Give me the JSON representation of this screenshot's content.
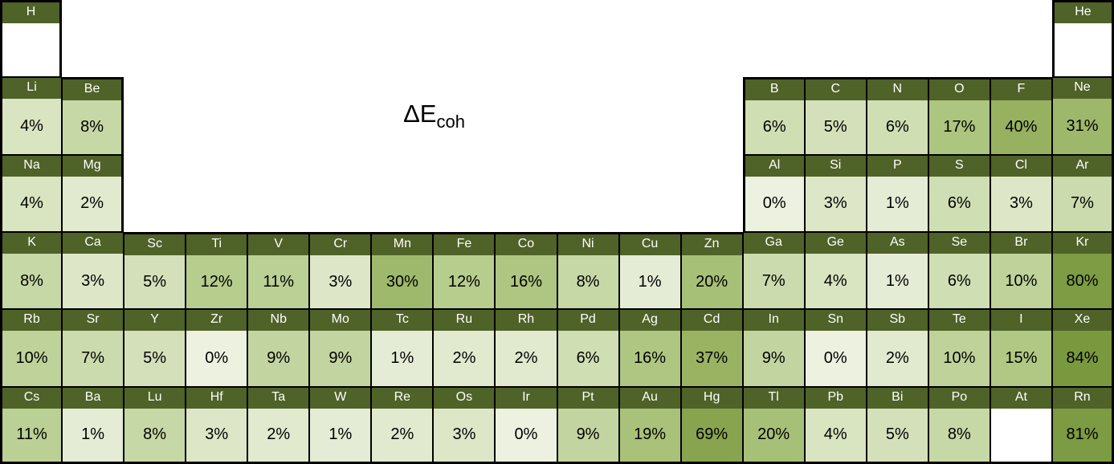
{
  "title": {
    "main": "ΔE",
    "sub": "coh"
  },
  "colors": {
    "header_bg": "#4F6228",
    "header_text": "#FFFFFF",
    "value_text": "#000000",
    "border": "#000000",
    "empty_body": "#FFFFFF",
    "background": "#FFFFFF",
    "value_colors": {
      "0": "#EDF1DF",
      "1": "#E5ECD5",
      "2": "#E1E9CE",
      "3": "#DDE7C8",
      "4": "#D9E4C1",
      "5": "#D4E0BA",
      "6": "#CFDEB3",
      "7": "#CBDBAD",
      "8": "#C6D8A6",
      "9": "#C2D5A0",
      "10": "#BED29A",
      "11": "#BAD094",
      "12": "#B7CD8E",
      "15": "#B0C884",
      "16": "#AEC681",
      "17": "#ACC57F",
      "19": "#A9C179",
      "20": "#A7C077",
      "30": "#9FB96C",
      "31": "#9EB86B",
      "37": "#99B363",
      "40": "#97B160",
      "69": "#88A44F",
      "80": "#7E9C43",
      "81": "#7D9B42",
      "84": "#7A983E"
    }
  },
  "chart_data": {
    "type": "heatmap",
    "layout": "periodic-table",
    "title": "ΔE_coh",
    "unit": "%",
    "columns": 18,
    "rows": 6,
    "value_range": [
      0,
      84
    ],
    "cells": [
      {
        "row": 1,
        "col": 1,
        "symbol": "H",
        "value": null
      },
      {
        "row": 1,
        "col": 18,
        "symbol": "He",
        "value": null
      },
      {
        "row": 2,
        "col": 1,
        "symbol": "Li",
        "value": 4
      },
      {
        "row": 2,
        "col": 2,
        "symbol": "Be",
        "value": 8
      },
      {
        "row": 2,
        "col": 13,
        "symbol": "B",
        "value": 6
      },
      {
        "row": 2,
        "col": 14,
        "symbol": "C",
        "value": 5
      },
      {
        "row": 2,
        "col": 15,
        "symbol": "N",
        "value": 6
      },
      {
        "row": 2,
        "col": 16,
        "symbol": "O",
        "value": 17
      },
      {
        "row": 2,
        "col": 17,
        "symbol": "F",
        "value": 40
      },
      {
        "row": 2,
        "col": 18,
        "symbol": "Ne",
        "value": 31
      },
      {
        "row": 3,
        "col": 1,
        "symbol": "Na",
        "value": 4
      },
      {
        "row": 3,
        "col": 2,
        "symbol": "Mg",
        "value": 2
      },
      {
        "row": 3,
        "col": 13,
        "symbol": "Al",
        "value": 0
      },
      {
        "row": 3,
        "col": 14,
        "symbol": "Si",
        "value": 3
      },
      {
        "row": 3,
        "col": 15,
        "symbol": "P",
        "value": 1
      },
      {
        "row": 3,
        "col": 16,
        "symbol": "S",
        "value": 6
      },
      {
        "row": 3,
        "col": 17,
        "symbol": "Cl",
        "value": 3
      },
      {
        "row": 3,
        "col": 18,
        "symbol": "Ar",
        "value": 7
      },
      {
        "row": 4,
        "col": 1,
        "symbol": "K",
        "value": 8
      },
      {
        "row": 4,
        "col": 2,
        "symbol": "Ca",
        "value": 3
      },
      {
        "row": 4,
        "col": 3,
        "symbol": "Sc",
        "value": 5
      },
      {
        "row": 4,
        "col": 4,
        "symbol": "Ti",
        "value": 12
      },
      {
        "row": 4,
        "col": 5,
        "symbol": "V",
        "value": 11
      },
      {
        "row": 4,
        "col": 6,
        "symbol": "Cr",
        "value": 3
      },
      {
        "row": 4,
        "col": 7,
        "symbol": "Mn",
        "value": 30
      },
      {
        "row": 4,
        "col": 8,
        "symbol": "Fe",
        "value": 12
      },
      {
        "row": 4,
        "col": 9,
        "symbol": "Co",
        "value": 16
      },
      {
        "row": 4,
        "col": 10,
        "symbol": "Ni",
        "value": 8
      },
      {
        "row": 4,
        "col": 11,
        "symbol": "Cu",
        "value": 1
      },
      {
        "row": 4,
        "col": 12,
        "symbol": "Zn",
        "value": 20
      },
      {
        "row": 4,
        "col": 13,
        "symbol": "Ga",
        "value": 7
      },
      {
        "row": 4,
        "col": 14,
        "symbol": "Ge",
        "value": 4
      },
      {
        "row": 4,
        "col": 15,
        "symbol": "As",
        "value": 1
      },
      {
        "row": 4,
        "col": 16,
        "symbol": "Se",
        "value": 6
      },
      {
        "row": 4,
        "col": 17,
        "symbol": "Br",
        "value": 10
      },
      {
        "row": 4,
        "col": 18,
        "symbol": "Kr",
        "value": 80
      },
      {
        "row": 5,
        "col": 1,
        "symbol": "Rb",
        "value": 10
      },
      {
        "row": 5,
        "col": 2,
        "symbol": "Sr",
        "value": 7
      },
      {
        "row": 5,
        "col": 3,
        "symbol": "Y",
        "value": 5
      },
      {
        "row": 5,
        "col": 4,
        "symbol": "Zr",
        "value": 0
      },
      {
        "row": 5,
        "col": 5,
        "symbol": "Nb",
        "value": 9
      },
      {
        "row": 5,
        "col": 6,
        "symbol": "Mo",
        "value": 9
      },
      {
        "row": 5,
        "col": 7,
        "symbol": "Tc",
        "value": 1
      },
      {
        "row": 5,
        "col": 8,
        "symbol": "Ru",
        "value": 2
      },
      {
        "row": 5,
        "col": 9,
        "symbol": "Rh",
        "value": 2
      },
      {
        "row": 5,
        "col": 10,
        "symbol": "Pd",
        "value": 6
      },
      {
        "row": 5,
        "col": 11,
        "symbol": "Ag",
        "value": 16
      },
      {
        "row": 5,
        "col": 12,
        "symbol": "Cd",
        "value": 37
      },
      {
        "row": 5,
        "col": 13,
        "symbol": "In",
        "value": 9
      },
      {
        "row": 5,
        "col": 14,
        "symbol": "Sn",
        "value": 0
      },
      {
        "row": 5,
        "col": 15,
        "symbol": "Sb",
        "value": 2
      },
      {
        "row": 5,
        "col": 16,
        "symbol": "Te",
        "value": 10
      },
      {
        "row": 5,
        "col": 17,
        "symbol": "I",
        "value": 15
      },
      {
        "row": 5,
        "col": 18,
        "symbol": "Xe",
        "value": 84
      },
      {
        "row": 6,
        "col": 1,
        "symbol": "Cs",
        "value": 11
      },
      {
        "row": 6,
        "col": 2,
        "symbol": "Ba",
        "value": 1
      },
      {
        "row": 6,
        "col": 3,
        "symbol": "Lu",
        "value": 8
      },
      {
        "row": 6,
        "col": 4,
        "symbol": "Hf",
        "value": 3
      },
      {
        "row": 6,
        "col": 5,
        "symbol": "Ta",
        "value": 2
      },
      {
        "row": 6,
        "col": 6,
        "symbol": "W",
        "value": 1
      },
      {
        "row": 6,
        "col": 7,
        "symbol": "Re",
        "value": 2
      },
      {
        "row": 6,
        "col": 8,
        "symbol": "Os",
        "value": 3
      },
      {
        "row": 6,
        "col": 9,
        "symbol": "Ir",
        "value": 0
      },
      {
        "row": 6,
        "col": 10,
        "symbol": "Pt",
        "value": 9
      },
      {
        "row": 6,
        "col": 11,
        "symbol": "Au",
        "value": 19
      },
      {
        "row": 6,
        "col": 12,
        "symbol": "Hg",
        "value": 69
      },
      {
        "row": 6,
        "col": 13,
        "symbol": "Tl",
        "value": 20
      },
      {
        "row": 6,
        "col": 14,
        "symbol": "Pb",
        "value": 4
      },
      {
        "row": 6,
        "col": 15,
        "symbol": "Bi",
        "value": 5
      },
      {
        "row": 6,
        "col": 16,
        "symbol": "Po",
        "value": 8
      },
      {
        "row": 6,
        "col": 17,
        "symbol": "At",
        "value": null
      },
      {
        "row": 6,
        "col": 18,
        "symbol": "Rn",
        "value": 81
      }
    ]
  }
}
